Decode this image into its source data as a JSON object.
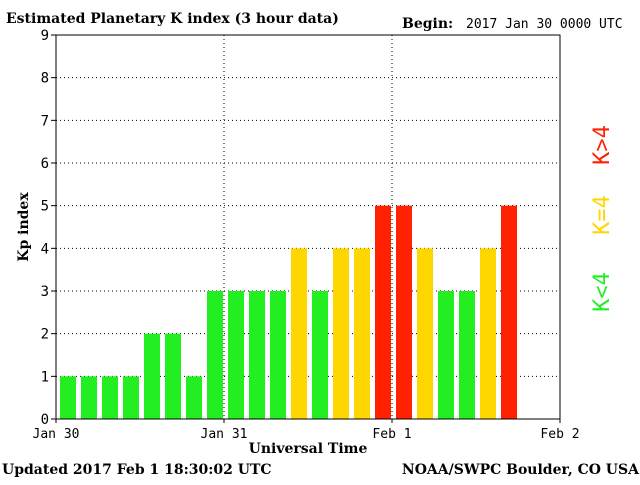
{
  "chart_data": {
    "type": "bar",
    "title": "Estimated Planetary K index (3 hour data)",
    "begin_label": "Begin:",
    "begin_value": "2017 Jan 30 0000 UTC",
    "xlabel": "Universal Time",
    "ylabel": "Kp index",
    "ylim": [
      0,
      9
    ],
    "yticks": [
      "0",
      "1",
      "2",
      "3",
      "4",
      "5",
      "6",
      "7",
      "8",
      "9"
    ],
    "xtick_labels": [
      "Jan 30",
      "Jan 31",
      "Feb 1",
      "Feb 2"
    ],
    "grid": true,
    "legend": [
      "K<4",
      "K=4",
      "K>4"
    ],
    "values": [
      1,
      1,
      1,
      1,
      2,
      2,
      1,
      3,
      3,
      3,
      3,
      4,
      3,
      4,
      4,
      5,
      5,
      4,
      3,
      3,
      4,
      5
    ],
    "colors": {
      "below": "#22ee22",
      "equal": "#ffd700",
      "above": "#ff2200"
    }
  },
  "footer": {
    "updated": "Updated 2017 Feb  1 18:30:02 UTC",
    "source": "NOAA/SWPC Boulder, CO USA"
  }
}
